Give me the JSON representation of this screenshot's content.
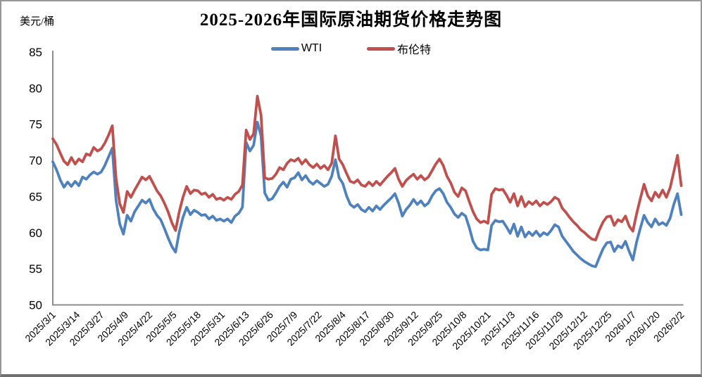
{
  "title": "2025-2026年国际原油期货价格走势图",
  "y_axis_unit": "美元/桶",
  "colors": {
    "wti_line": "#4F81BD",
    "brent_line": "#C0504D",
    "axis": "#8C8C8C",
    "background": "#FFFFFF",
    "border": "#979797"
  },
  "chart_data": {
    "type": "line",
    "title": "2025-2026年国际原油期货价格走势图",
    "ylabel": "美元/桶",
    "xlabel": "",
    "ylim": [
      50,
      85
    ],
    "y_ticks": [
      85,
      80,
      75,
      70,
      65,
      60,
      55,
      50
    ],
    "grid": false,
    "legend_position": "top-center",
    "x_start": "2025/3/1",
    "x_end": "2026/2/2",
    "sample_interval_days": 2,
    "x_tick_labels": [
      "2025/3/1",
      "2025/3/14",
      "2025/3/27",
      "2025/4/9",
      "2025/4/22",
      "2025/5/5",
      "2025/5/18",
      "2025/5/31",
      "2025/6/13",
      "2025/6/26",
      "2025/7/9",
      "2025/7/22",
      "2025/8/4",
      "2025/8/17",
      "2025/8/30",
      "2025/9/12",
      "2025/9/25",
      "2025/10/8",
      "2025/10/21",
      "2025/11/3",
      "2025/11/16",
      "2025/11/29",
      "2025/12/12",
      "2025/12/25",
      "2026/1/7",
      "2026/1/20",
      "2026/2/2"
    ],
    "series": [
      {
        "name": "WTI",
        "color": "#4F81BD",
        "values": [
          69.8,
          68.7,
          67.3,
          66.3,
          67.0,
          66.4,
          67.1,
          66.5,
          67.7,
          67.4,
          68.0,
          68.4,
          68.1,
          68.4,
          69.3,
          70.5,
          71.7,
          64.5,
          61.2,
          59.8,
          62.4,
          61.6,
          62.9,
          63.7,
          64.5,
          64.1,
          64.6,
          63.3,
          62.4,
          61.8,
          60.6,
          59.3,
          58.1,
          57.3,
          60.1,
          62.1,
          63.5,
          62.5,
          63.1,
          62.8,
          62.4,
          62.5,
          61.9,
          62.3,
          61.7,
          61.9,
          61.6,
          61.9,
          61.4,
          62.3,
          62.7,
          63.5,
          72.5,
          71.3,
          72.1,
          75.3,
          73.4,
          65.5,
          64.5,
          64.7,
          65.5,
          66.4,
          67.0,
          66.3,
          67.4,
          67.6,
          68.3,
          67.3,
          67.9,
          67.1,
          66.7,
          67.2,
          66.8,
          66.4,
          66.7,
          67.8,
          70.1,
          67.6,
          66.8,
          65.1,
          63.9,
          63.5,
          63.9,
          63.2,
          62.9,
          63.5,
          63.0,
          63.7,
          63.2,
          63.8,
          64.3,
          64.8,
          65.4,
          64.1,
          62.3,
          63.2,
          63.8,
          64.6,
          63.9,
          64.4,
          63.7,
          64.1,
          65.1,
          65.8,
          66.1,
          65.4,
          64.2,
          63.5,
          62.6,
          62.1,
          62.7,
          62.3,
          60.7,
          58.8,
          57.9,
          57.6,
          57.7,
          57.6,
          61.0,
          61.7,
          61.5,
          61.6,
          60.8,
          59.9,
          61.2,
          59.5,
          60.8,
          59.4,
          60.1,
          59.6,
          60.2,
          59.5,
          60.0,
          59.7,
          60.3,
          61.1,
          60.8,
          59.5,
          58.8,
          58.1,
          57.4,
          56.9,
          56.4,
          56.0,
          55.7,
          55.4,
          55.3,
          56.6,
          57.8,
          58.6,
          58.7,
          57.4,
          58.2,
          57.9,
          58.8,
          57.4,
          56.2,
          58.7,
          60.6,
          62.4,
          61.4,
          60.8,
          61.9,
          61.1,
          61.4,
          61.0,
          62.0,
          63.9,
          65.4,
          62.5
        ]
      },
      {
        "name": "布伦特",
        "color": "#C0504D",
        "values": [
          73.0,
          72.2,
          71.0,
          69.9,
          69.4,
          70.4,
          69.5,
          70.2,
          69.8,
          70.9,
          70.7,
          71.8,
          71.3,
          71.6,
          72.4,
          73.5,
          74.8,
          67.5,
          64.0,
          62.8,
          65.7,
          64.9,
          65.9,
          66.8,
          67.7,
          67.3,
          67.8,
          66.8,
          65.8,
          65.1,
          64.1,
          62.9,
          61.4,
          60.3,
          62.9,
          64.9,
          66.4,
          65.4,
          65.9,
          65.8,
          65.3,
          65.5,
          64.9,
          65.3,
          64.6,
          64.8,
          64.5,
          64.9,
          64.6,
          65.3,
          65.7,
          66.6,
          74.2,
          72.9,
          73.7,
          78.9,
          76.3,
          67.6,
          67.4,
          67.5,
          68.1,
          69.0,
          68.7,
          69.6,
          70.1,
          69.9,
          70.3,
          69.5,
          70.1,
          69.4,
          69.0,
          69.5,
          68.9,
          69.3,
          68.7,
          69.6,
          73.4,
          70.2,
          69.4,
          68.2,
          67.1,
          66.9,
          67.3,
          66.6,
          66.4,
          67.0,
          66.5,
          67.1,
          66.6,
          67.2,
          67.8,
          68.3,
          68.9,
          67.4,
          66.4,
          67.2,
          67.7,
          68.1,
          67.4,
          67.9,
          67.3,
          67.7,
          68.6,
          69.5,
          70.2,
          69.3,
          67.8,
          66.9,
          65.6,
          65.0,
          66.2,
          65.8,
          64.3,
          62.9,
          61.9,
          61.4,
          61.6,
          61.3,
          65.3,
          66.1,
          65.9,
          66.0,
          65.2,
          64.2,
          65.4,
          63.7,
          65.0,
          63.6,
          64.3,
          63.9,
          64.4,
          63.7,
          64.2,
          63.9,
          64.3,
          64.9,
          64.6,
          63.4,
          62.8,
          62.1,
          61.5,
          61.0,
          60.4,
          60.0,
          59.5,
          59.1,
          59.0,
          60.4,
          61.5,
          62.2,
          62.3,
          61.0,
          61.8,
          61.5,
          62.3,
          60.9,
          60.2,
          62.6,
          64.7,
          66.7,
          65.1,
          64.4,
          65.6,
          64.9,
          65.9,
          64.9,
          66.2,
          68.4,
          70.7,
          66.5
        ]
      }
    ]
  }
}
